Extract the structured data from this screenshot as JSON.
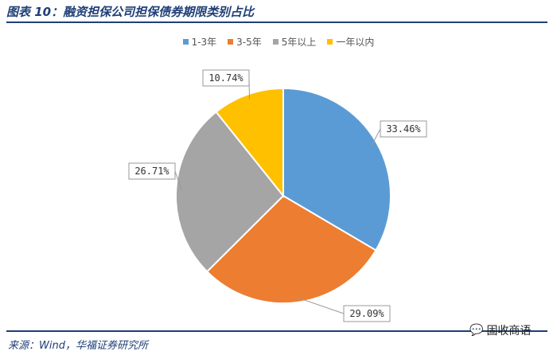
{
  "header": {
    "title": "图表 10：融资担保公司担保债券期限类别占比"
  },
  "footer": {
    "source": "来源：Wind，华福证券研究所",
    "watermark": "固收商语"
  },
  "chart_data": {
    "type": "pie",
    "title": "",
    "legend_position": "top-center",
    "categories": [
      "1-3年",
      "3-5年",
      "5年以上",
      "一年以内"
    ],
    "values": [
      33.46,
      29.09,
      26.71,
      10.74
    ],
    "labels": [
      "33.46%",
      "29.09%",
      "26.71%",
      "10.74%"
    ],
    "colors": [
      "#5b9bd5",
      "#ed7d31",
      "#a5a5a5",
      "#ffc000"
    ]
  }
}
